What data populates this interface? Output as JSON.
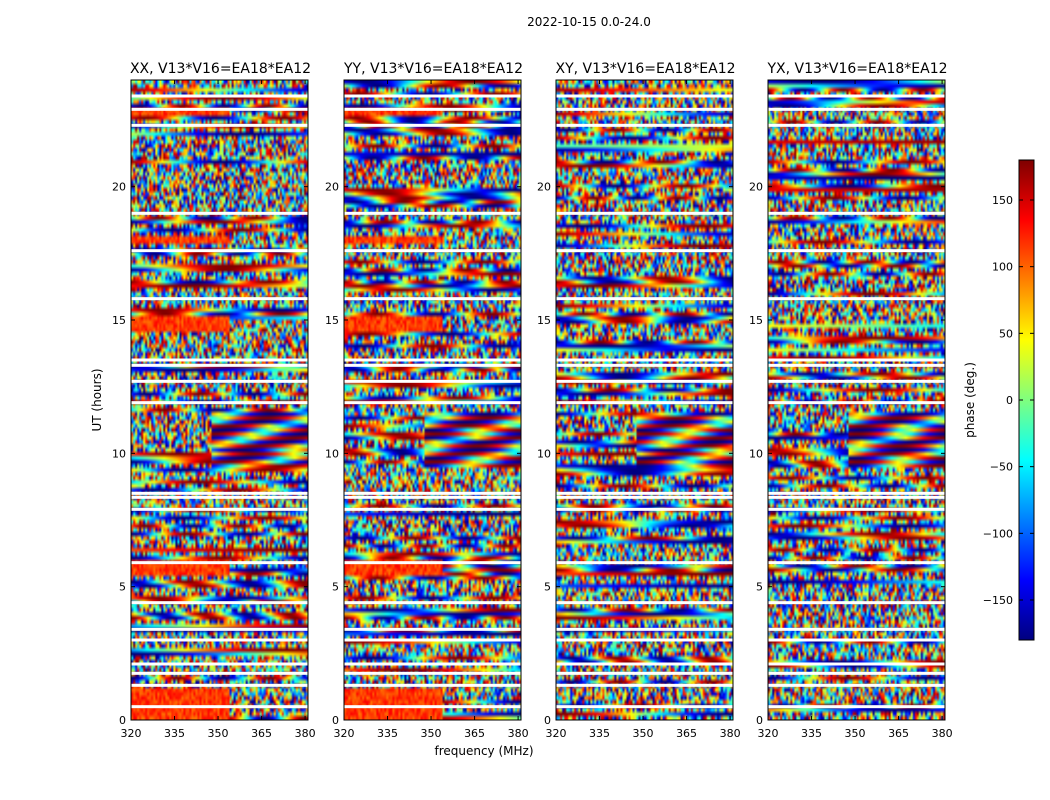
{
  "figure": {
    "suptitle": "2022-10-15 0.0-24.0",
    "xlabel": "frequency (MHz)",
    "ylabel": "UT (hours)"
  },
  "chart_data": [
    {
      "type": "heatmap",
      "title": "XX, V13*V16=EA18*EA12",
      "xlabel": "frequency (MHz)",
      "ylabel": "UT (hours)",
      "xlim": [
        320,
        381
      ],
      "ylim": [
        0,
        24
      ],
      "x_ticks": [
        320,
        335,
        350,
        365,
        380
      ],
      "y_ticks": [
        0,
        5,
        10,
        15,
        20
      ]
    },
    {
      "type": "heatmap",
      "title": "YY, V13*V16=EA18*EA12",
      "xlabel": "frequency (MHz)",
      "xlim": [
        320,
        381
      ],
      "ylim": [
        0,
        24
      ],
      "x_ticks": [
        320,
        335,
        350,
        365,
        380
      ],
      "y_ticks": [
        0,
        5,
        10,
        15,
        20
      ]
    },
    {
      "type": "heatmap",
      "title": "XY, V13*V16=EA18*EA12",
      "xlabel": "frequency (MHz)",
      "xlim": [
        320,
        381
      ],
      "ylim": [
        0,
        24
      ],
      "x_ticks": [
        320,
        335,
        350,
        365,
        380
      ],
      "y_ticks": [
        0,
        5,
        10,
        15,
        20
      ]
    },
    {
      "type": "heatmap",
      "title": "YX, V13*V16=EA18*EA12",
      "xlabel": "frequency (MHz)",
      "xlim": [
        320,
        381
      ],
      "ylim": [
        0,
        24
      ],
      "x_ticks": [
        320,
        335,
        350,
        365,
        380
      ],
      "y_ticks": [
        0,
        5,
        10,
        15,
        20
      ]
    }
  ],
  "colorbar": {
    "label": "phase (deg.)",
    "range": [
      -180,
      180
    ],
    "ticks": [
      150,
      100,
      50,
      0,
      -50,
      -100,
      -150
    ],
    "tick_labels": [
      "150",
      "100",
      "50",
      "0",
      "−50",
      "−100",
      "−150"
    ],
    "colormap": "jet"
  },
  "gaps_hours": [
    0.5,
    1.3,
    1.75,
    2.1,
    3.0,
    3.4,
    4.4,
    5.9,
    7.9,
    8.35,
    8.5,
    11.9,
    12.7,
    13.3,
    13.5,
    15.8,
    17.6,
    19.0,
    22.3,
    22.9,
    23.4
  ],
  "axis_labels_shown": {
    "x_panel": 1,
    "y_panel": 0
  }
}
